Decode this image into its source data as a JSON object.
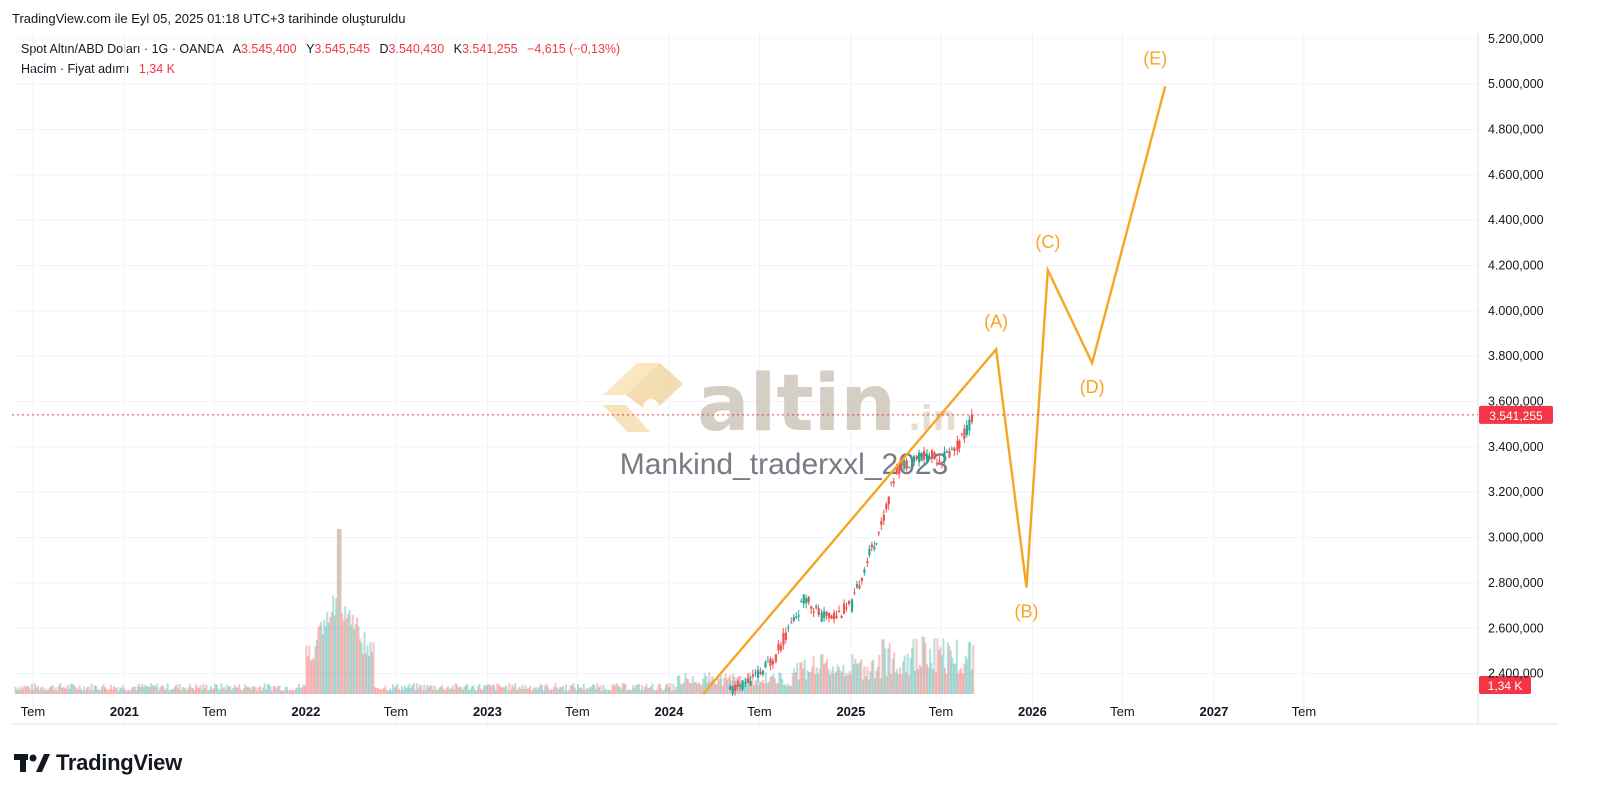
{
  "header": {
    "created_text": "TradingView.com ile Eyl 05, 2025 01:18 UTC+3 tarihinde oluşturuldu"
  },
  "legend": {
    "symbol": "Spot Altın/ABD Doları · 1G · OANDA",
    "open_label": "A",
    "open": "3.545,400",
    "high_label": "Y",
    "high": "3.545,545",
    "low_label": "D",
    "low": "3.540,430",
    "close_label": "K",
    "close": "3.541,255",
    "change": "−4,615 (−0,13%)",
    "volume_label": "Hacim · Fiyat adımı",
    "volume_value": "1,34 K"
  },
  "watermark": {
    "logo_text": "altin",
    "logo_suffix": ".in",
    "author": "Mankind_traderxxl_2023"
  },
  "branding": {
    "name": "TradingView"
  },
  "colors": {
    "wave": "#f5a623",
    "up": "#26a69a",
    "down": "#ef5350",
    "price_badge": "#f23645",
    "grid": "#f0f3fa",
    "axis_text": "#131722"
  },
  "chart_data": {
    "type": "line",
    "symbol": "Spot Altın/ABD Doları",
    "y_axis": {
      "ticks": [
        2400000,
        2600000,
        2800000,
        3000000,
        3200000,
        3400000,
        3600000,
        3800000,
        4000000,
        4200000,
        4400000,
        4600000,
        4800000,
        5000000,
        5200000
      ],
      "tick_labels": [
        "2.400,000",
        "2.600,000",
        "2.800,000",
        "3.000,000",
        "3.200,000",
        "3.400,000",
        "3.600,000",
        "3.800,000",
        "4.000,000",
        "4.200,000",
        "4.400,000",
        "4.600,000",
        "4.800,000",
        "5.000,000",
        "5.200,000"
      ],
      "ylim": [
        2310000,
        5230000
      ],
      "position": "right"
    },
    "x_axis": {
      "tick_labels": [
        "Tem",
        "2021",
        "Tem",
        "2022",
        "Tem",
        "2023",
        "Tem",
        "2024",
        "Tem",
        "2025",
        "Tem",
        "2026",
        "Tem",
        "2027",
        "Tem"
      ],
      "tick_dates": [
        "2020-07-01",
        "2021-01-01",
        "2021-07-01",
        "2022-01-01",
        "2022-07-01",
        "2023-01-01",
        "2023-07-01",
        "2024-01-01",
        "2024-07-01",
        "2025-01-01",
        "2025-07-01",
        "2026-01-01",
        "2026-07-01",
        "2027-01-01",
        "2027-07-01"
      ],
      "bold_labels": [
        "2021",
        "2022",
        "2023",
        "2024",
        "2025",
        "2026",
        "2027"
      ],
      "xlim": [
        "2020-05-20",
        "2028-06-15"
      ]
    },
    "last_price": {
      "value": 3541255,
      "label": "3.541,255"
    },
    "volume_badge": "1,34 K",
    "price_series": {
      "name": "Spot Altın/ABD Doları",
      "x": [
        "2024-05-01",
        "2024-06-01",
        "2024-07-01",
        "2024-08-01",
        "2024-09-01",
        "2024-10-01",
        "2024-11-01",
        "2024-12-01",
        "2025-01-01",
        "2025-02-01",
        "2025-03-01",
        "2025-04-01",
        "2025-05-01",
        "2025-06-01",
        "2025-07-01",
        "2025-08-01",
        "2025-09-04"
      ],
      "y": [
        2320000,
        2360000,
        2400000,
        2480000,
        2620000,
        2740000,
        2650000,
        2660000,
        2700000,
        2900000,
        3050000,
        3300000,
        3350000,
        3360000,
        3350000,
        3400000,
        3541255
      ]
    },
    "wave_projection": {
      "labels": [
        "",
        "(A)",
        "(B)",
        "(C)",
        "(D)",
        "(E)"
      ],
      "x": [
        "2024-03-10",
        "2025-10-20",
        "2025-12-20",
        "2026-02-01",
        "2026-05-01",
        "2026-09-25"
      ],
      "y": [
        2310000,
        3830000,
        2780000,
        4180000,
        3770000,
        4990000
      ]
    },
    "volume": {
      "visible": true,
      "spikes": [
        {
          "x": "2022-03-08",
          "value": "high"
        }
      ]
    },
    "grid": true,
    "legend_position": "top-left"
  }
}
